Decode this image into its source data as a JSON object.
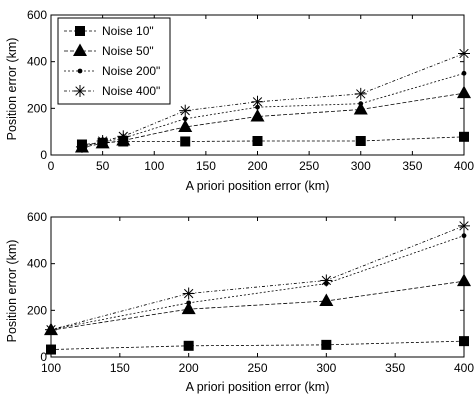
{
  "chart_data": [
    {
      "type": "line",
      "xlabel": "A priori position error (km)",
      "ylabel": "Position error (km)",
      "xlim": [
        0,
        400
      ],
      "ylim": [
        0,
        600
      ],
      "xticks": [
        0,
        50,
        100,
        150,
        200,
        250,
        300,
        350,
        400
      ],
      "yticks": [
        0,
        200,
        400,
        600
      ],
      "grid": false,
      "legend_position": "top-left",
      "series": [
        {
          "name": "Noise 10\"",
          "marker": "square",
          "x": [
            30,
            50,
            70,
            130,
            200,
            300,
            400
          ],
          "y": [
            45,
            52,
            58,
            58,
            60,
            60,
            78
          ]
        },
        {
          "name": "Noise 50\"",
          "marker": "triangle",
          "x": [
            30,
            50,
            70,
            130,
            200,
            300,
            400
          ],
          "y": [
            32,
            50,
            62,
            120,
            165,
            195,
            265
          ]
        },
        {
          "name": "Noise 200\"",
          "marker": "dot",
          "x": [
            30,
            50,
            70,
            130,
            200,
            300,
            400
          ],
          "y": [
            38,
            55,
            72,
            155,
            205,
            220,
            350
          ]
        },
        {
          "name": "Noise 400\"",
          "marker": "star",
          "x": [
            30,
            50,
            70,
            130,
            200,
            300,
            400
          ],
          "y": [
            35,
            60,
            80,
            190,
            228,
            262,
            435
          ]
        }
      ]
    },
    {
      "type": "line",
      "xlabel": "A priori position error (km)",
      "ylabel": "Position error (km)",
      "xlim": [
        100,
        400
      ],
      "ylim": [
        0,
        600
      ],
      "xticks": [
        100,
        150,
        200,
        250,
        300,
        350,
        400
      ],
      "yticks": [
        0,
        200,
        400,
        600
      ],
      "grid": false,
      "series": [
        {
          "marker": "square",
          "x": [
            100,
            200,
            300,
            400
          ],
          "y": [
            32,
            48,
            52,
            68
          ]
        },
        {
          "marker": "triangle",
          "x": [
            100,
            200,
            300,
            400
          ],
          "y": [
            115,
            205,
            240,
            325
          ]
        },
        {
          "marker": "dot",
          "x": [
            100,
            200,
            300,
            400
          ],
          "y": [
            118,
            232,
            315,
            520
          ]
        },
        {
          "marker": "star",
          "x": [
            100,
            200,
            300,
            400
          ],
          "y": [
            117,
            272,
            328,
            562
          ]
        }
      ]
    }
  ]
}
